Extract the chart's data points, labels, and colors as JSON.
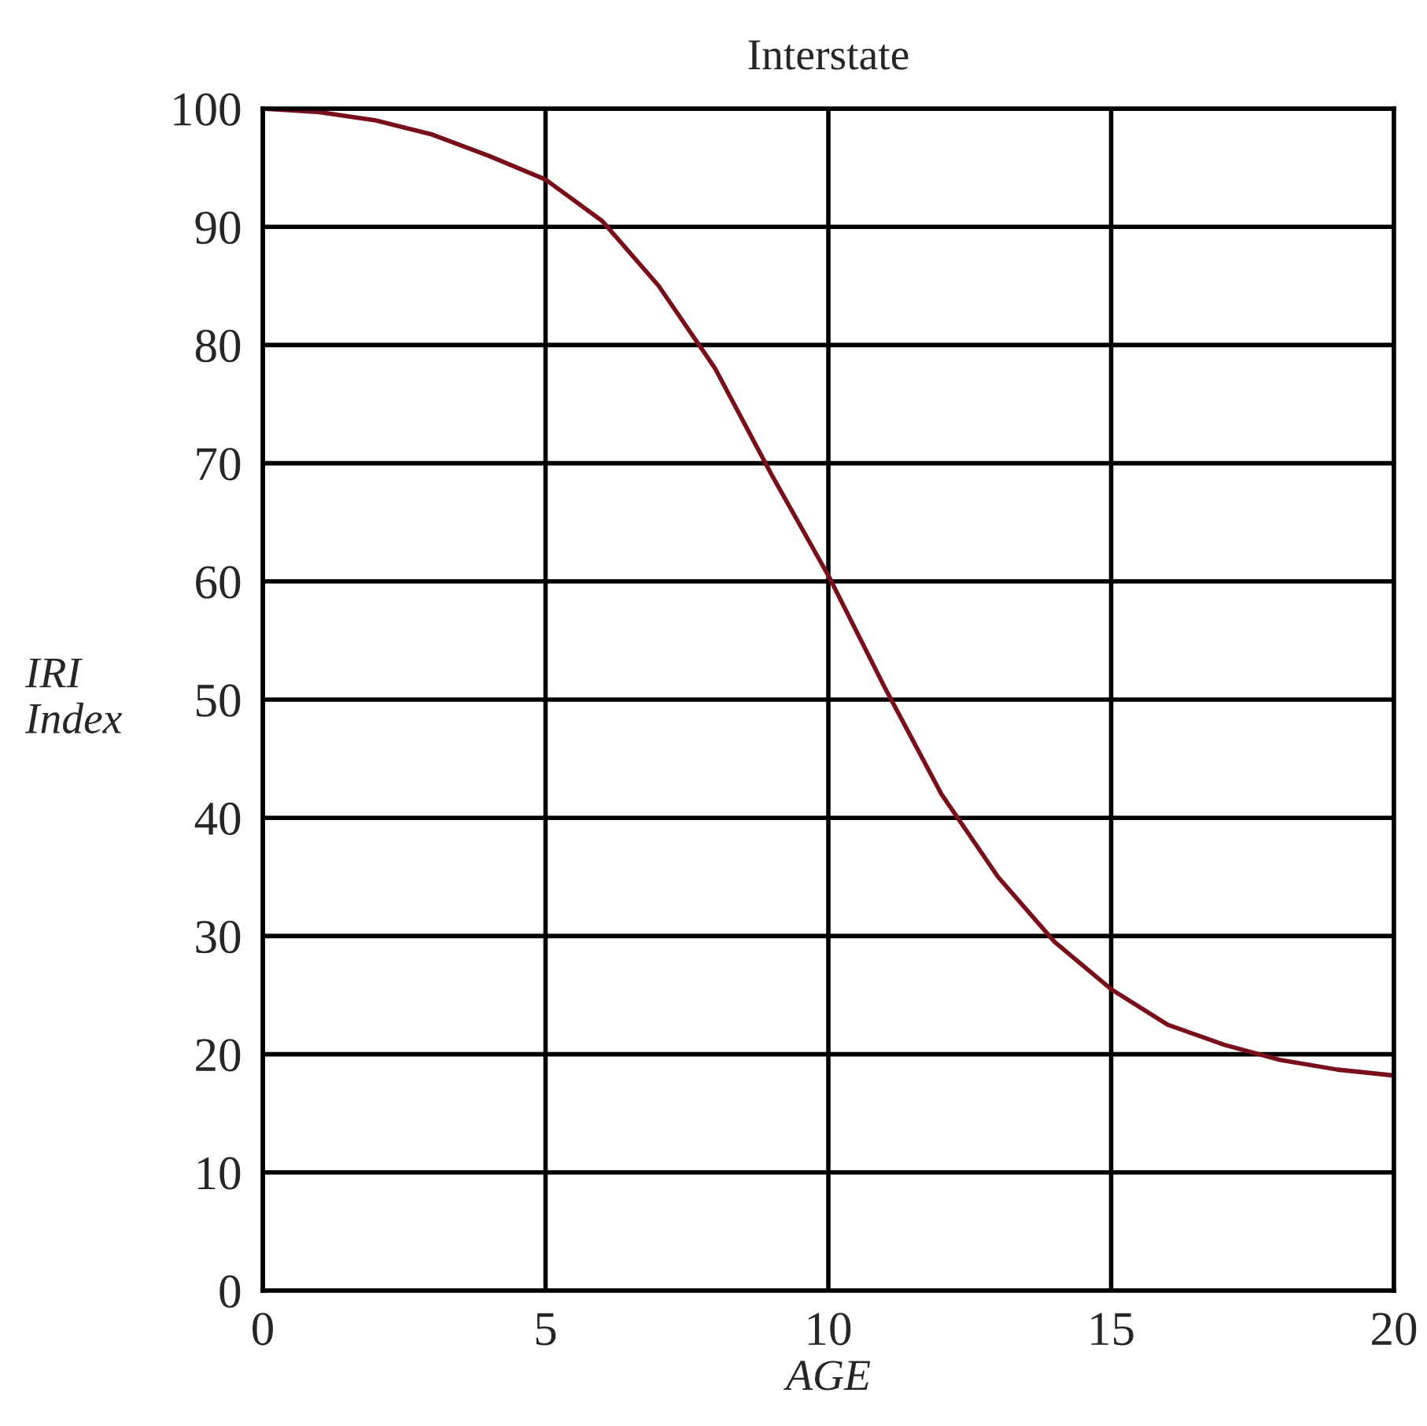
{
  "chart_data": {
    "type": "line",
    "title": "Interstate",
    "xlabel": "AGE",
    "ylabel": "IRI\nIndex",
    "x": [
      0,
      1,
      2,
      3,
      4,
      5,
      6,
      7,
      8,
      9,
      10,
      11,
      12,
      13,
      14,
      15,
      16,
      17,
      18,
      19,
      20
    ],
    "series": [
      {
        "color": "#7a0f1c",
        "values": [
          100,
          99.7,
          99,
          97.8,
          96,
          94,
          90.5,
          85,
          78,
          69,
          60.5,
          51,
          42,
          35,
          29.5,
          25.5,
          22.5,
          20.8,
          19.5,
          18.7,
          18.2
        ]
      }
    ],
    "xlim": [
      0,
      20
    ],
    "ylim": [
      0,
      100
    ],
    "xticks": [
      0,
      5,
      10,
      15,
      20
    ],
    "yticks": [
      0,
      10,
      20,
      30,
      40,
      50,
      60,
      70,
      80,
      90,
      100
    ],
    "grid": true,
    "marker": "none",
    "line_style": "solid"
  }
}
